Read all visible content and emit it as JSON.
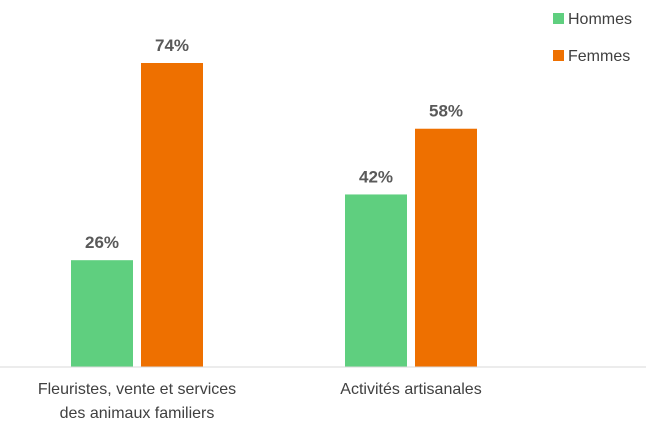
{
  "chart_data": {
    "type": "bar",
    "categories": [
      [
        "Fleuristes, vente et services",
        "des animaux familiers"
      ],
      [
        "Activités artisanales"
      ]
    ],
    "series": [
      {
        "name": "Hommes",
        "values": [
          26,
          42
        ],
        "labels": [
          "26%",
          "42%"
        ],
        "color": "#5fcf7f"
      },
      {
        "name": "Femmes",
        "values": [
          74,
          58
        ],
        "labels": [
          "74%",
          "58%"
        ],
        "color": "#ee7000"
      }
    ],
    "ylim": [
      0,
      100
    ],
    "grid": false,
    "legend": "top-right"
  }
}
